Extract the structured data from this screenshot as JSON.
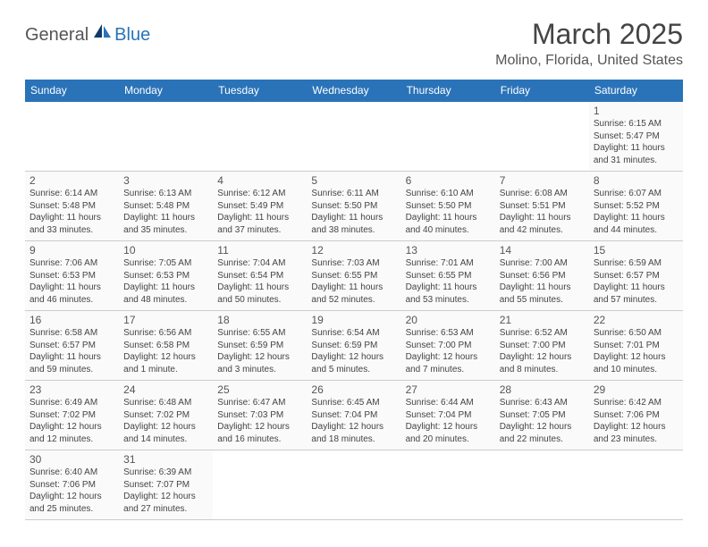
{
  "logo": {
    "general": "General",
    "blue": "Blue"
  },
  "title": "March 2025",
  "location": "Molino, Florida, United States",
  "colors": {
    "header_bg": "#2a73b8",
    "header_text": "#ffffff",
    "cell_border_top": "#2a73b8",
    "cell_bg": "#fafafa",
    "page_bg": "#ffffff",
    "text": "#444444"
  },
  "weekdays": [
    "Sunday",
    "Monday",
    "Tuesday",
    "Wednesday",
    "Thursday",
    "Friday",
    "Saturday"
  ],
  "weeks": [
    [
      null,
      null,
      null,
      null,
      null,
      null,
      {
        "d": "1",
        "sr": "6:15 AM",
        "ss": "5:47 PM",
        "dl": "11 hours and 31 minutes."
      }
    ],
    [
      {
        "d": "2",
        "sr": "6:14 AM",
        "ss": "5:48 PM",
        "dl": "11 hours and 33 minutes."
      },
      {
        "d": "3",
        "sr": "6:13 AM",
        "ss": "5:48 PM",
        "dl": "11 hours and 35 minutes."
      },
      {
        "d": "4",
        "sr": "6:12 AM",
        "ss": "5:49 PM",
        "dl": "11 hours and 37 minutes."
      },
      {
        "d": "5",
        "sr": "6:11 AM",
        "ss": "5:50 PM",
        "dl": "11 hours and 38 minutes."
      },
      {
        "d": "6",
        "sr": "6:10 AM",
        "ss": "5:50 PM",
        "dl": "11 hours and 40 minutes."
      },
      {
        "d": "7",
        "sr": "6:08 AM",
        "ss": "5:51 PM",
        "dl": "11 hours and 42 minutes."
      },
      {
        "d": "8",
        "sr": "6:07 AM",
        "ss": "5:52 PM",
        "dl": "11 hours and 44 minutes."
      }
    ],
    [
      {
        "d": "9",
        "sr": "7:06 AM",
        "ss": "6:53 PM",
        "dl": "11 hours and 46 minutes."
      },
      {
        "d": "10",
        "sr": "7:05 AM",
        "ss": "6:53 PM",
        "dl": "11 hours and 48 minutes."
      },
      {
        "d": "11",
        "sr": "7:04 AM",
        "ss": "6:54 PM",
        "dl": "11 hours and 50 minutes."
      },
      {
        "d": "12",
        "sr": "7:03 AM",
        "ss": "6:55 PM",
        "dl": "11 hours and 52 minutes."
      },
      {
        "d": "13",
        "sr": "7:01 AM",
        "ss": "6:55 PM",
        "dl": "11 hours and 53 minutes."
      },
      {
        "d": "14",
        "sr": "7:00 AM",
        "ss": "6:56 PM",
        "dl": "11 hours and 55 minutes."
      },
      {
        "d": "15",
        "sr": "6:59 AM",
        "ss": "6:57 PM",
        "dl": "11 hours and 57 minutes."
      }
    ],
    [
      {
        "d": "16",
        "sr": "6:58 AM",
        "ss": "6:57 PM",
        "dl": "11 hours and 59 minutes."
      },
      {
        "d": "17",
        "sr": "6:56 AM",
        "ss": "6:58 PM",
        "dl": "12 hours and 1 minute."
      },
      {
        "d": "18",
        "sr": "6:55 AM",
        "ss": "6:59 PM",
        "dl": "12 hours and 3 minutes."
      },
      {
        "d": "19",
        "sr": "6:54 AM",
        "ss": "6:59 PM",
        "dl": "12 hours and 5 minutes."
      },
      {
        "d": "20",
        "sr": "6:53 AM",
        "ss": "7:00 PM",
        "dl": "12 hours and 7 minutes."
      },
      {
        "d": "21",
        "sr": "6:52 AM",
        "ss": "7:00 PM",
        "dl": "12 hours and 8 minutes."
      },
      {
        "d": "22",
        "sr": "6:50 AM",
        "ss": "7:01 PM",
        "dl": "12 hours and 10 minutes."
      }
    ],
    [
      {
        "d": "23",
        "sr": "6:49 AM",
        "ss": "7:02 PM",
        "dl": "12 hours and 12 minutes."
      },
      {
        "d": "24",
        "sr": "6:48 AM",
        "ss": "7:02 PM",
        "dl": "12 hours and 14 minutes."
      },
      {
        "d": "25",
        "sr": "6:47 AM",
        "ss": "7:03 PM",
        "dl": "12 hours and 16 minutes."
      },
      {
        "d": "26",
        "sr": "6:45 AM",
        "ss": "7:04 PM",
        "dl": "12 hours and 18 minutes."
      },
      {
        "d": "27",
        "sr": "6:44 AM",
        "ss": "7:04 PM",
        "dl": "12 hours and 20 minutes."
      },
      {
        "d": "28",
        "sr": "6:43 AM",
        "ss": "7:05 PM",
        "dl": "12 hours and 22 minutes."
      },
      {
        "d": "29",
        "sr": "6:42 AM",
        "ss": "7:06 PM",
        "dl": "12 hours and 23 minutes."
      }
    ],
    [
      {
        "d": "30",
        "sr": "6:40 AM",
        "ss": "7:06 PM",
        "dl": "12 hours and 25 minutes."
      },
      {
        "d": "31",
        "sr": "6:39 AM",
        "ss": "7:07 PM",
        "dl": "12 hours and 27 minutes."
      },
      null,
      null,
      null,
      null,
      null
    ]
  ],
  "labels": {
    "sunrise": "Sunrise:",
    "sunset": "Sunset:",
    "daylight": "Daylight:"
  }
}
